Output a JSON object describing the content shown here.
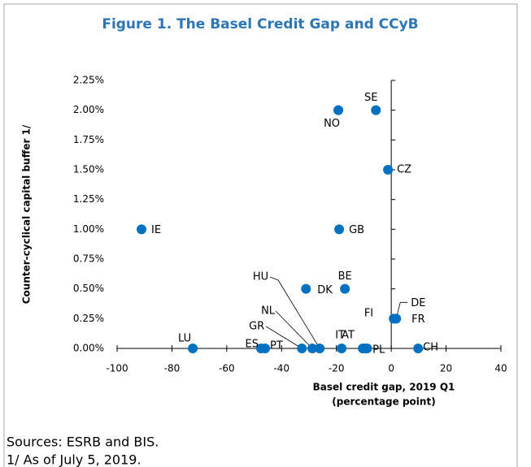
{
  "chart_data": {
    "type": "scatter",
    "title": "Figure 1. The Basel Credit Gap and CCyB",
    "xlabel": [
      "Basel credit gap, 2019 Q1",
      "(percentage point)"
    ],
    "ylabel": "Counter-cyclical capital buffer 1/",
    "color": "#0070c0",
    "xlim": [
      -100,
      40
    ],
    "xticks": [
      -100,
      -80,
      -60,
      -40,
      -20,
      0,
      20,
      40
    ],
    "ylim": [
      0,
      2.25
    ],
    "yticks": [
      {
        "value": 0,
        "label": "0.00%"
      },
      {
        "value": 0.25,
        "label": "0.25%"
      },
      {
        "value": 0.5,
        "label": "0.50%"
      },
      {
        "value": 0.75,
        "label": "0.75%"
      },
      {
        "value": 1,
        "label": "1.00%"
      },
      {
        "value": 1.25,
        "label": "1.25%"
      },
      {
        "value": 1.5,
        "label": "1.50%"
      },
      {
        "value": 1.75,
        "label": "1.75%"
      },
      {
        "value": 2,
        "label": "2.00%"
      },
      {
        "value": 2.25,
        "label": "2.25%"
      }
    ],
    "labels": [
      "IE",
      "LU",
      "ES",
      "PT",
      "GR",
      "NL",
      "HU",
      "IT",
      "AT",
      "FI",
      "PL",
      "CH",
      "DE",
      "FR",
      "BE",
      "DK",
      "GB",
      "NO",
      "SE",
      "CZ"
    ],
    "x": [
      -91.1,
      -72.4,
      -47.5,
      -46,
      -32.6,
      -28.8,
      -26.1,
      -18.1,
      -10.4,
      -8.8,
      -9.5,
      9.8,
      1.8,
      0.9,
      -16.9,
      -31.1,
      -19,
      -19.3,
      -5.6,
      -1.2
    ],
    "y": [
      1,
      0,
      0,
      0,
      0,
      0,
      0,
      0,
      0,
      0,
      0,
      0,
      0.25,
      0.25,
      0.5,
      0.5,
      1,
      2,
      2,
      1.5
    ],
    "notes": [
      "Sources: ESRB and BIS.",
      "1/ As of July 5, 2019."
    ]
  }
}
